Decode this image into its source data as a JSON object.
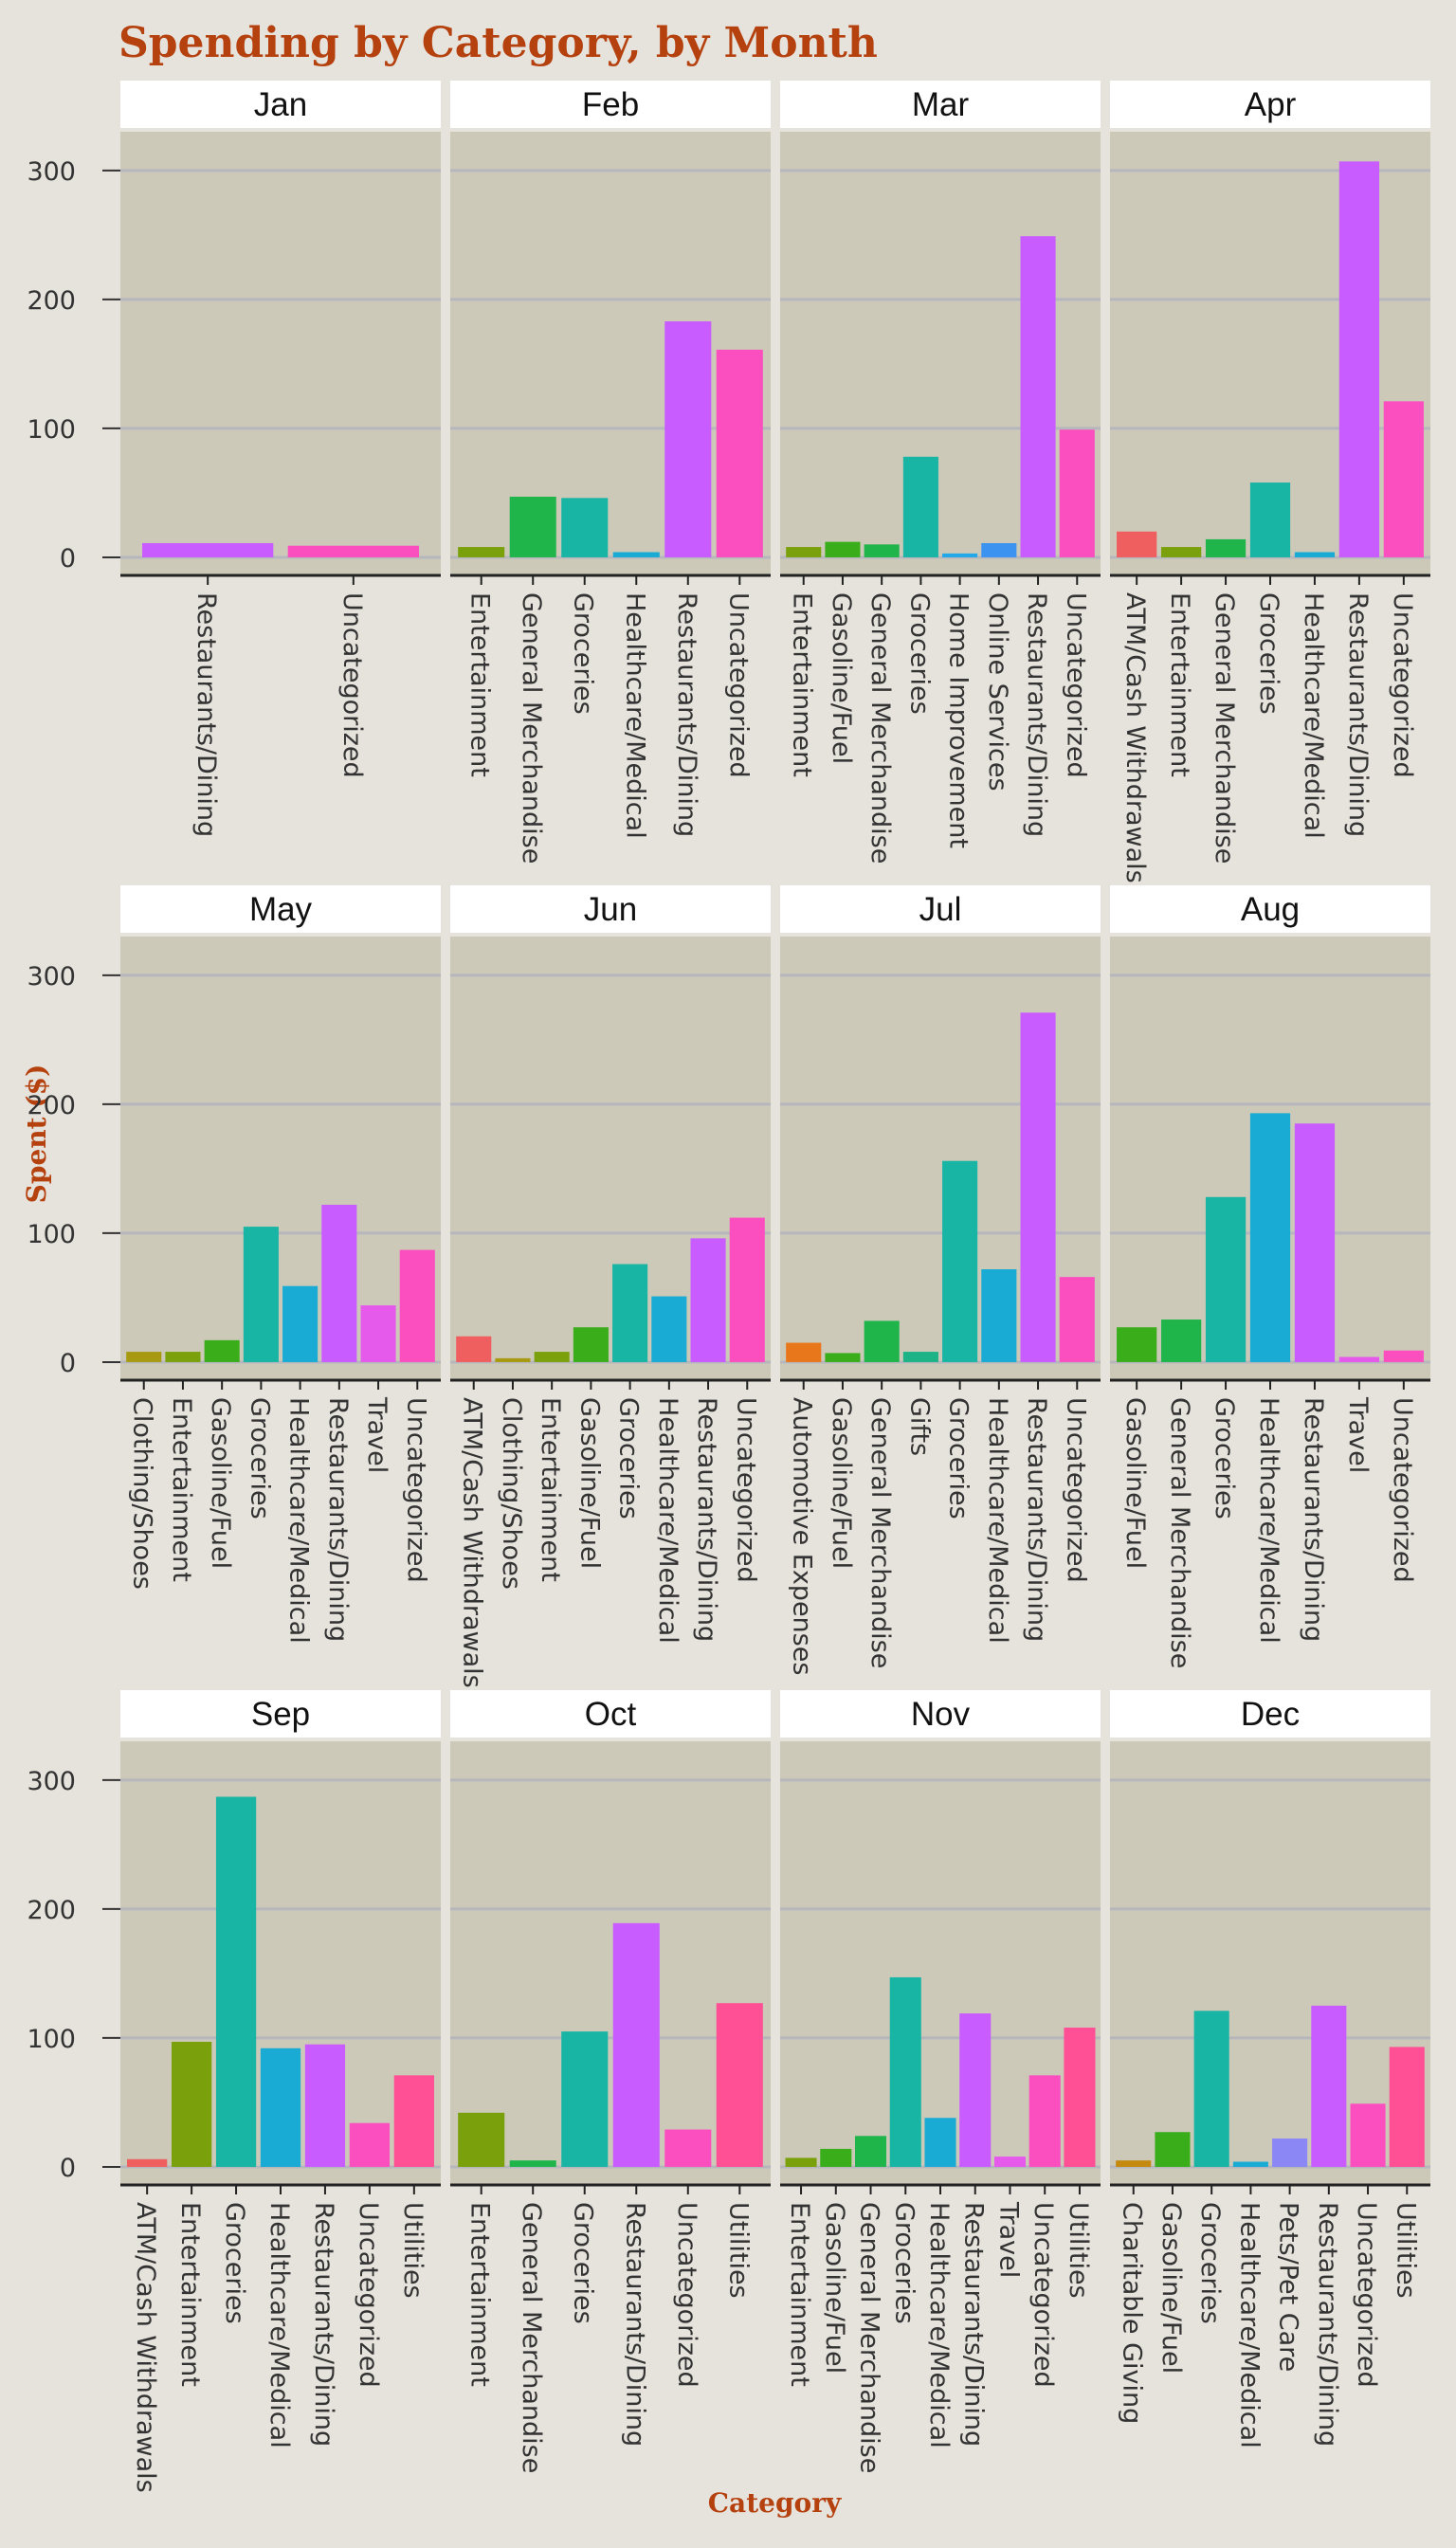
{
  "chart_data": {
    "type": "bar",
    "title": "Spending by Category, by Month",
    "xlabel": "Category",
    "ylabel": "Spent ($)",
    "ylim": [
      0,
      330
    ],
    "yticks": [
      0,
      100,
      200,
      300
    ],
    "grid": true,
    "legend": "none",
    "layout": "facet-grid 3 rows x 4 columns, x scales free per panel",
    "category_colors": {
      "ATM/Cash Withdrawals": "#f05f5f",
      "Automotive Expenses": "#e8761b",
      "Charitable Giving": "#c4890f",
      "Clothing/Shoes": "#a89a10",
      "Entertainment": "#7aa10b",
      "Gasoline/Fuel": "#3aad1b",
      "General Merchandise": "#1fb54a",
      "Gifts": "#1db386",
      "Groceries": "#18b5a5",
      "Healthcare/Medical": "#19abd4",
      "Home Improvement": "#22a7e8",
      "Online Services": "#3d93f0",
      "Pets/Pet Care": "#8b88f5",
      "Restaurants/Dining": "#c95cff",
      "Travel": "#e55aea",
      "Uncategorized": "#fb4fbf",
      "Utilities": "#ff4f95"
    },
    "panels": [
      {
        "month": "Jan",
        "categories": [
          "Restaurants/Dining",
          "Uncategorized"
        ],
        "values": [
          11,
          9
        ]
      },
      {
        "month": "Feb",
        "categories": [
          "Entertainment",
          "General Merchandise",
          "Groceries",
          "Healthcare/Medical",
          "Restaurants/Dining",
          "Uncategorized"
        ],
        "values": [
          8,
          47,
          46,
          4,
          183,
          161
        ]
      },
      {
        "month": "Mar",
        "categories": [
          "Entertainment",
          "Gasoline/Fuel",
          "General Merchandise",
          "Groceries",
          "Home Improvement",
          "Online Services",
          "Restaurants/Dining",
          "Uncategorized"
        ],
        "values": [
          8,
          12,
          10,
          78,
          3,
          11,
          249,
          99
        ]
      },
      {
        "month": "Apr",
        "categories": [
          "ATM/Cash Withdrawals",
          "Entertainment",
          "General Merchandise",
          "Groceries",
          "Healthcare/Medical",
          "Restaurants/Dining",
          "Uncategorized"
        ],
        "values": [
          20,
          8,
          14,
          58,
          4,
          307,
          121
        ]
      },
      {
        "month": "May",
        "categories": [
          "Clothing/Shoes",
          "Entertainment",
          "Gasoline/Fuel",
          "Groceries",
          "Healthcare/Medical",
          "Restaurants/Dining",
          "Travel",
          "Uncategorized"
        ],
        "values": [
          8,
          8,
          17,
          105,
          59,
          122,
          44,
          87
        ]
      },
      {
        "month": "Jun",
        "categories": [
          "ATM/Cash Withdrawals",
          "Clothing/Shoes",
          "Entertainment",
          "Gasoline/Fuel",
          "Groceries",
          "Healthcare/Medical",
          "Restaurants/Dining",
          "Uncategorized"
        ],
        "values": [
          20,
          3,
          8,
          27,
          76,
          51,
          96,
          112
        ]
      },
      {
        "month": "Jul",
        "categories": [
          "Automotive Expenses",
          "Gasoline/Fuel",
          "General Merchandise",
          "Gifts",
          "Groceries",
          "Healthcare/Medical",
          "Restaurants/Dining",
          "Uncategorized"
        ],
        "values": [
          15,
          7,
          32,
          8,
          156,
          72,
          271,
          66
        ]
      },
      {
        "month": "Aug",
        "categories": [
          "Gasoline/Fuel",
          "General Merchandise",
          "Groceries",
          "Healthcare/Medical",
          "Restaurants/Dining",
          "Travel",
          "Uncategorized"
        ],
        "values": [
          27,
          33,
          128,
          193,
          185,
          4,
          9
        ]
      },
      {
        "month": "Sep",
        "categories": [
          "ATM/Cash Withdrawals",
          "Entertainment",
          "Groceries",
          "Healthcare/Medical",
          "Restaurants/Dining",
          "Uncategorized",
          "Utilities"
        ],
        "values": [
          6,
          97,
          287,
          92,
          95,
          34,
          71
        ]
      },
      {
        "month": "Oct",
        "categories": [
          "Entertainment",
          "General Merchandise",
          "Groceries",
          "Restaurants/Dining",
          "Uncategorized",
          "Utilities"
        ],
        "values": [
          42,
          5,
          105,
          189,
          29,
          127
        ]
      },
      {
        "month": "Nov",
        "categories": [
          "Entertainment",
          "Gasoline/Fuel",
          "General Merchandise",
          "Groceries",
          "Healthcare/Medical",
          "Restaurants/Dining",
          "Travel",
          "Uncategorized",
          "Utilities"
        ],
        "values": [
          7,
          14,
          24,
          147,
          38,
          119,
          8,
          71,
          108
        ]
      },
      {
        "month": "Dec",
        "categories": [
          "Charitable Giving",
          "Gasoline/Fuel",
          "Groceries",
          "Healthcare/Medical",
          "Pets/Pet Care",
          "Restaurants/Dining",
          "Uncategorized",
          "Utilities"
        ],
        "values": [
          5,
          27,
          121,
          4,
          22,
          125,
          49,
          93
        ]
      }
    ]
  }
}
